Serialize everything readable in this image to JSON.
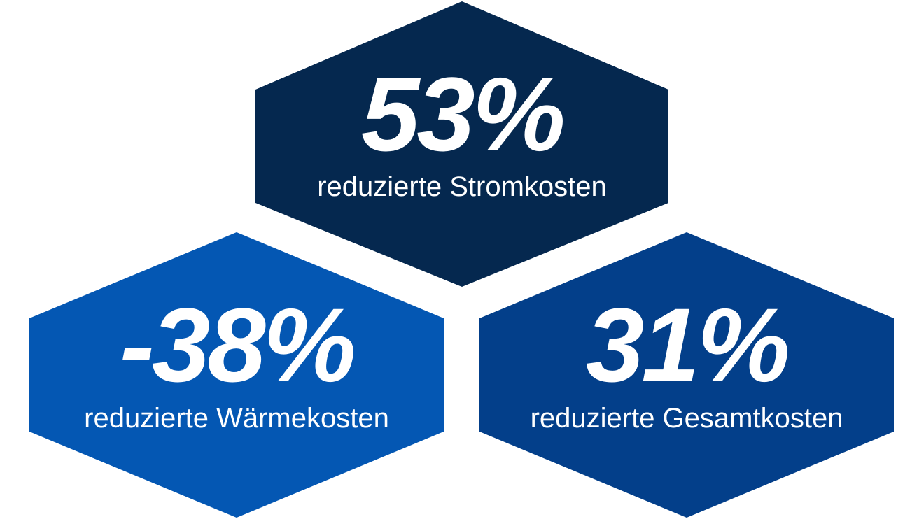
{
  "stats": [
    {
      "value": "53%",
      "label": "reduzierte Stromkosten"
    },
    {
      "value": "-38%",
      "label": "reduzierte Wärmekosten"
    },
    {
      "value": "31%",
      "label": "reduzierte Gesamtkosten"
    }
  ]
}
